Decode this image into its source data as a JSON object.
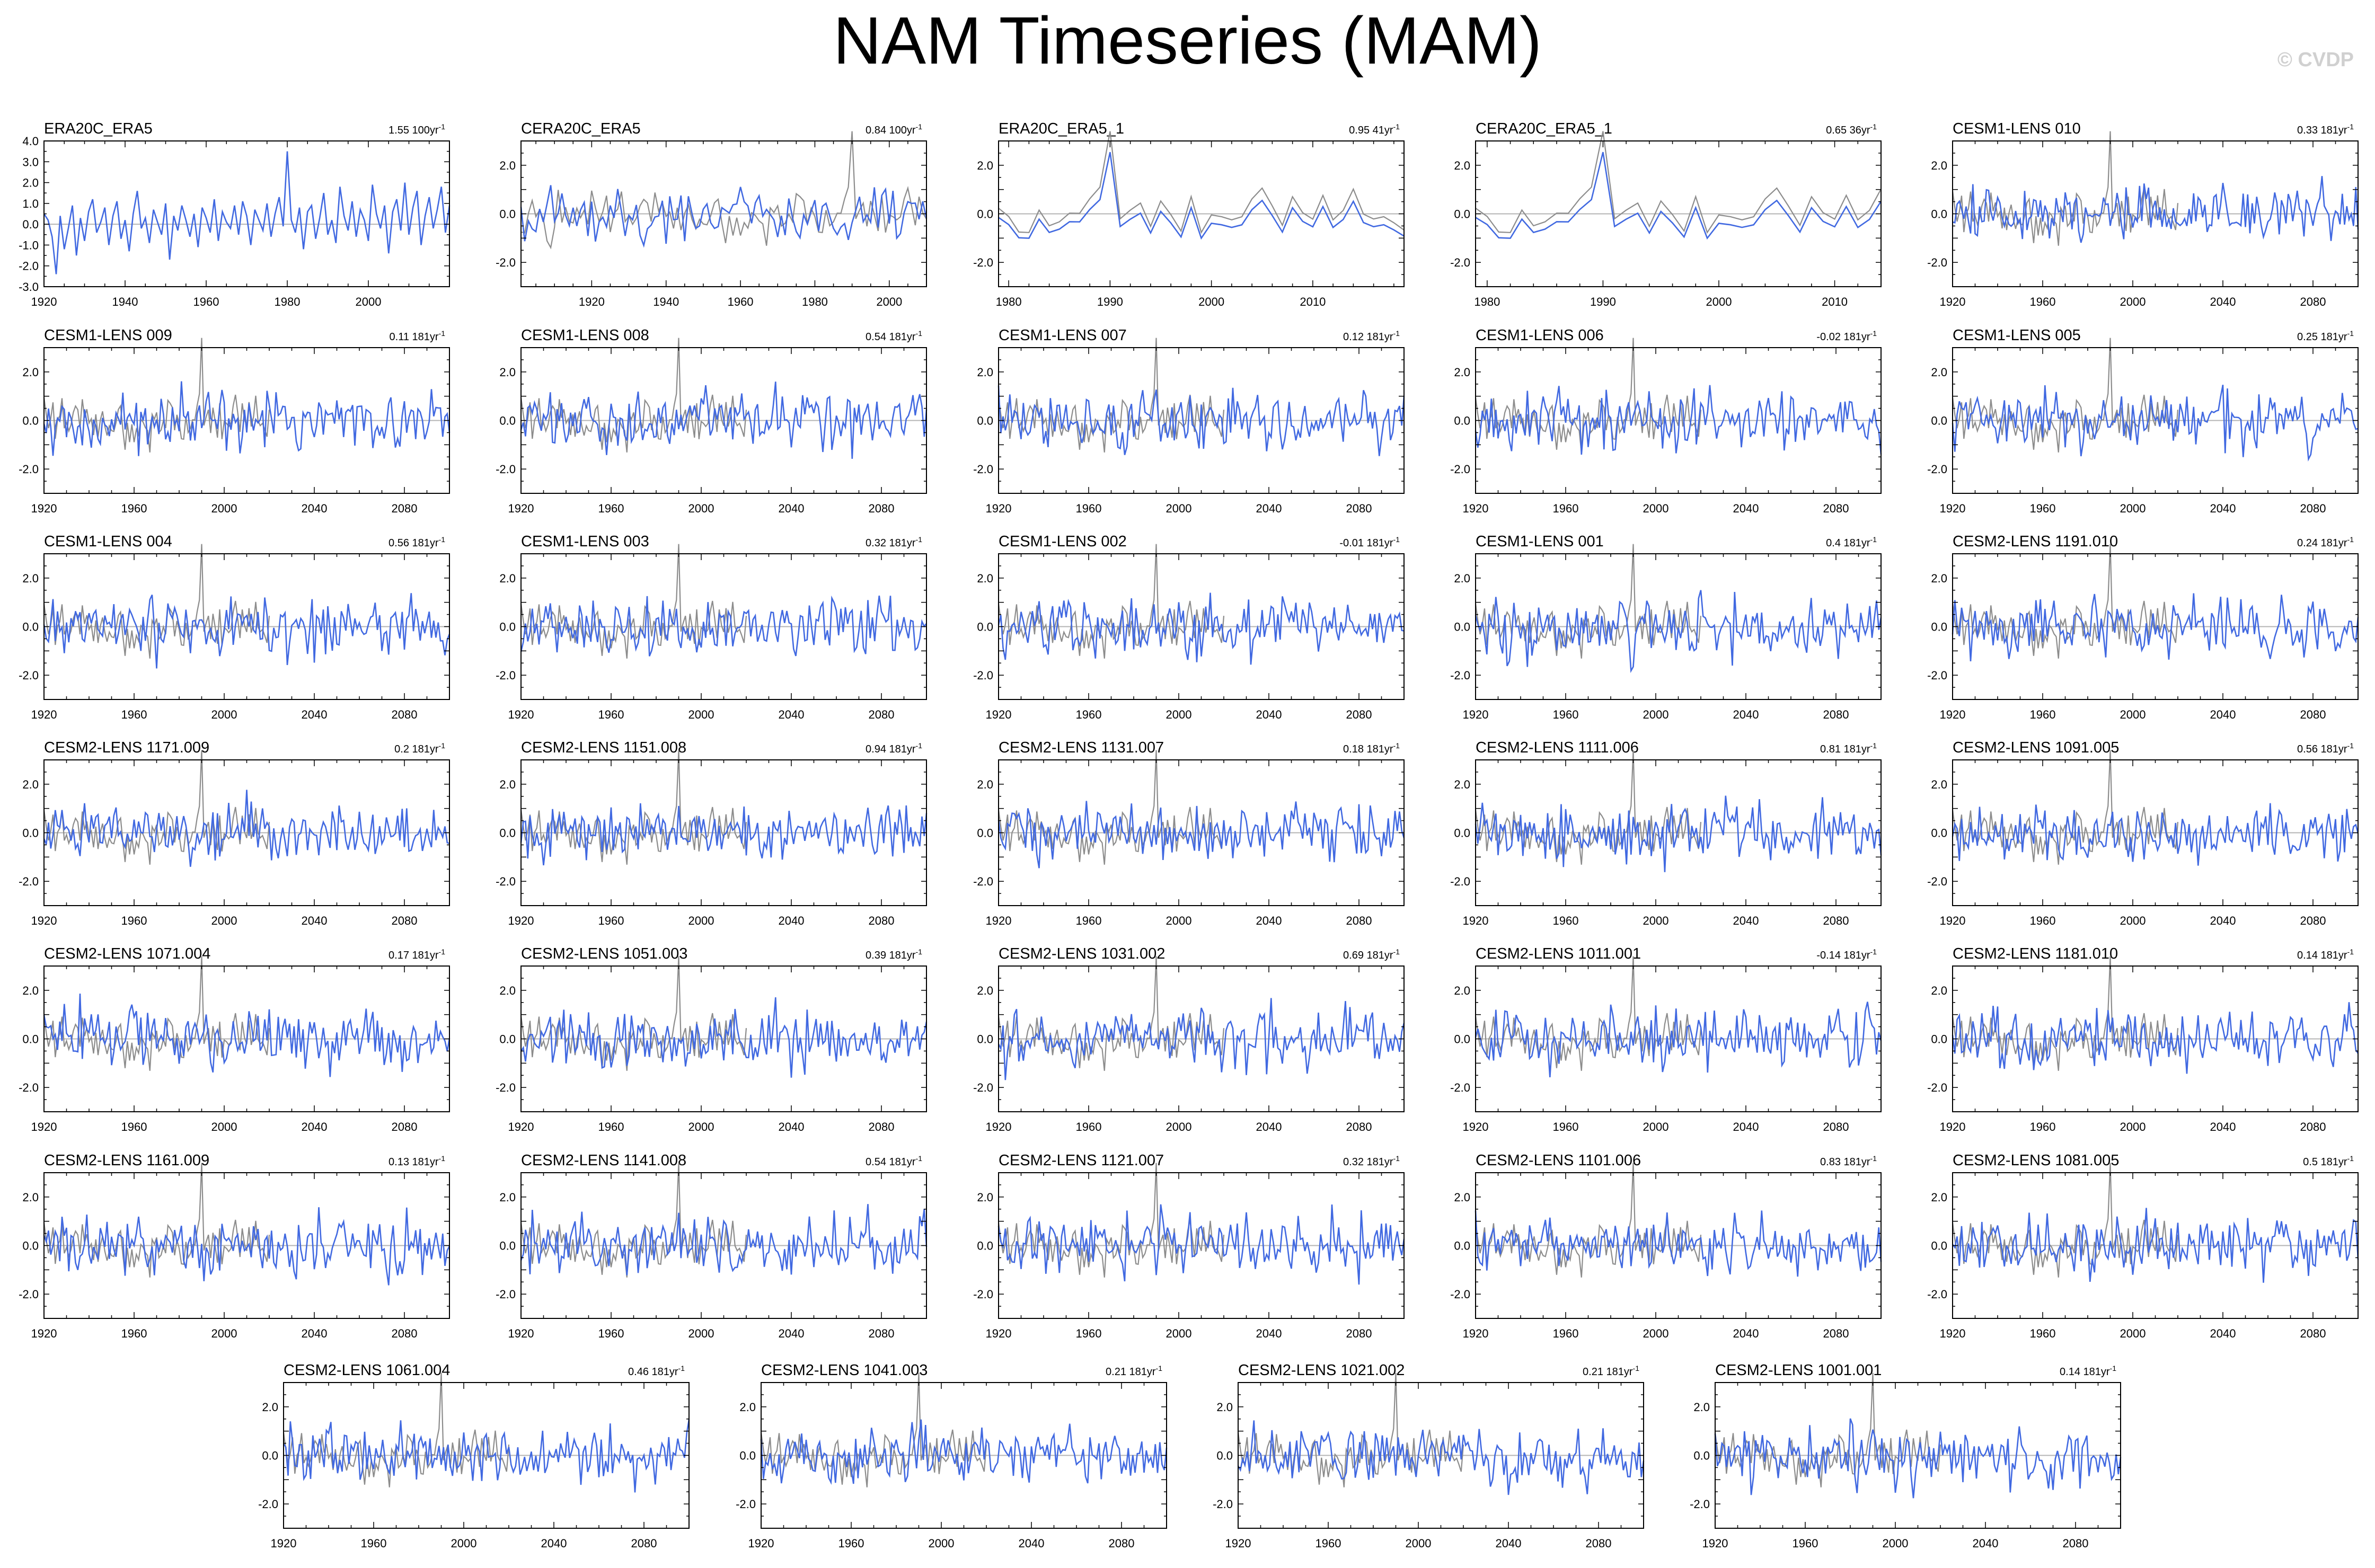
{
  "title": "NAM Timeseries (MAM)",
  "watermark": "© CVDP",
  "colors": {
    "model": "#4169e1",
    "observed": "#8c8c8c",
    "zero_line": "#b4b4b4"
  },
  "chart_data": [
    {
      "type": "line",
      "title": "ERA20C_ERA5",
      "trend": "1.55 100yr",
      "trend_exp": "-1",
      "xlim": [
        1920,
        2020
      ],
      "ylim": [
        -3.0,
        4.0
      ],
      "xticks": [
        1920,
        1940,
        1960,
        1980,
        2000
      ],
      "yticks": [
        "4.0",
        "3.0",
        "2.0",
        "1.0",
        "0.0",
        "-1.0",
        "-2.0",
        "-3.0"
      ],
      "ytick_values": [
        4,
        3,
        2,
        1,
        0,
        -1,
        -2,
        -3
      ],
      "series": [
        {
          "values_from": 1920,
          "values": [
            0.5,
            0.2,
            -0.6,
            -2.4,
            0.4,
            -1.2,
            -0.2,
            0.9,
            -1.5,
            0.3,
            -0.8,
            0.6,
            1.2,
            -0.4,
            0.1,
            0.8,
            -1.0,
            0.4,
            1.1,
            -0.7,
            0.2,
            -1.3,
            0.5,
            1.6,
            -0.2,
            0.3,
            -0.9,
            0.7,
            0.1,
            -0.5,
            1.0,
            -1.7,
            0.4,
            -0.3,
            0.9,
            0.2,
            -0.6,
            0.5,
            -1.1,
            0.8,
            0.3,
            -0.4,
            1.2,
            -0.8,
            0.6,
            0.1,
            -0.2,
            0.9,
            -0.5,
            1.1,
            0.4,
            -1.0,
            0.7,
            0.2,
            -0.3,
            1.0,
            -0.6,
            0.5,
            1.3,
            -0.1,
            3.5,
            0.2,
            -0.4,
            0.8,
            -1.2,
            0.6,
            0.9,
            -0.7,
            0.3,
            1.5,
            -0.5,
            0.2,
            -0.9,
            1.8,
            0.4,
            -0.3,
            1.1,
            -0.6,
            0.7,
            0.2,
            -0.8,
            1.9,
            0.5,
            -0.2,
            0.9,
            -1.4,
            0.6,
            1.2,
            -0.3,
            2.0,
            -0.5,
            0.8,
            1.6,
            -1.0,
            0.4,
            1.3,
            -0.2,
            0.7,
            1.8,
            -0.4,
            0.9
          ]
        }
      ]
    },
    {
      "type": "line",
      "title": "CERA20C_ERA5",
      "trend": "0.84 100yr",
      "trend_exp": "-1",
      "xlim": [
        1901,
        2010
      ],
      "ylim": [
        -3.0,
        3.0
      ],
      "xticks": [
        1920,
        1940,
        1960,
        1980,
        2000
      ],
      "yticks": [
        "2.0",
        "0.0",
        "-2.0"
      ],
      "ytick_values": [
        2,
        0,
        -2
      ]
    },
    {
      "type": "line",
      "title": "ERA20C_ERA5_1",
      "trend": "0.95 41yr",
      "trend_exp": "-1",
      "xlim": [
        1979,
        2019
      ],
      "ylim": [
        -3.0,
        3.0
      ],
      "xticks": [
        1980,
        1990,
        2000,
        2010
      ],
      "yticks": [
        "2.0",
        "0.0",
        "-2.0"
      ],
      "ytick_values": [
        2,
        0,
        -2
      ]
    },
    {
      "type": "line",
      "title": "CERA20C_ERA5_1",
      "trend": "0.65 36yr",
      "trend_exp": "-1",
      "xlim": [
        1979,
        2014
      ],
      "ylim": [
        -3.0,
        3.0
      ],
      "xticks": [
        1980,
        1990,
        2000,
        2010
      ],
      "yticks": [
        "2.0",
        "0.0",
        "-2.0"
      ],
      "ytick_values": [
        2,
        0,
        -2
      ]
    },
    {
      "type": "line",
      "title": "CESM1-LENS 010",
      "trend": "0.33 181yr",
      "trend_exp": "-1",
      "xlim": [
        1920,
        2100
      ],
      "ylim": [
        -3.0,
        3.0
      ],
      "xticks": [
        1920,
        1960,
        2000,
        2040,
        2080
      ],
      "yticks": [
        "2.0",
        "0.0",
        "-2.0"
      ],
      "ytick_values": [
        2,
        0,
        -2
      ]
    },
    {
      "type": "line",
      "title": "CESM1-LENS 009",
      "trend": "0.11 181yr",
      "trend_exp": "-1",
      "xlim": [
        1920,
        2100
      ],
      "ylim": [
        -3.0,
        3.0
      ],
      "xticks": [
        1920,
        1960,
        2000,
        2040,
        2080
      ],
      "yticks": [
        "2.0",
        "0.0",
        "-2.0"
      ],
      "ytick_values": [
        2,
        0,
        -2
      ]
    },
    {
      "type": "line",
      "title": "CESM1-LENS 008",
      "trend": "0.54 181yr",
      "trend_exp": "-1",
      "xlim": [
        1920,
        2100
      ],
      "ylim": [
        -3.0,
        3.0
      ],
      "xticks": [
        1920,
        1960,
        2000,
        2040,
        2080
      ],
      "yticks": [
        "2.0",
        "0.0",
        "-2.0"
      ],
      "ytick_values": [
        2,
        0,
        -2
      ]
    },
    {
      "type": "line",
      "title": "CESM1-LENS 007",
      "trend": "0.12 181yr",
      "trend_exp": "-1",
      "xlim": [
        1920,
        2100
      ],
      "ylim": [
        -3.0,
        3.0
      ],
      "xticks": [
        1920,
        1960,
        2000,
        2040,
        2080
      ],
      "yticks": [
        "2.0",
        "0.0",
        "-2.0"
      ],
      "ytick_values": [
        2,
        0,
        -2
      ]
    },
    {
      "type": "line",
      "title": "CESM1-LENS 006",
      "trend": "-0.02 181yr",
      "trend_exp": "-1",
      "xlim": [
        1920,
        2100
      ],
      "ylim": [
        -3.0,
        3.0
      ],
      "xticks": [
        1920,
        1960,
        2000,
        2040,
        2080
      ],
      "yticks": [
        "2.0",
        "0.0",
        "-2.0"
      ],
      "ytick_values": [
        2,
        0,
        -2
      ]
    },
    {
      "type": "line",
      "title": "CESM1-LENS 005",
      "trend": "0.25 181yr",
      "trend_exp": "-1",
      "xlim": [
        1920,
        2100
      ],
      "ylim": [
        -3.0,
        3.0
      ],
      "xticks": [
        1920,
        1960,
        2000,
        2040,
        2080
      ],
      "yticks": [
        "2.0",
        "0.0",
        "-2.0"
      ],
      "ytick_values": [
        2,
        0,
        -2
      ]
    },
    {
      "type": "line",
      "title": "CESM1-LENS 004",
      "trend": "0.56 181yr",
      "trend_exp": "-1",
      "xlim": [
        1920,
        2100
      ],
      "ylim": [
        -3.0,
        3.0
      ],
      "xticks": [
        1920,
        1960,
        2000,
        2040,
        2080
      ],
      "yticks": [
        "2.0",
        "0.0",
        "-2.0"
      ],
      "ytick_values": [
        2,
        0,
        -2
      ]
    },
    {
      "type": "line",
      "title": "CESM1-LENS 003",
      "trend": "0.32 181yr",
      "trend_exp": "-1",
      "xlim": [
        1920,
        2100
      ],
      "ylim": [
        -3.0,
        3.0
      ],
      "xticks": [
        1920,
        1960,
        2000,
        2040,
        2080
      ],
      "yticks": [
        "2.0",
        "0.0",
        "-2.0"
      ],
      "ytick_values": [
        2,
        0,
        -2
      ]
    },
    {
      "type": "line",
      "title": "CESM1-LENS 002",
      "trend": "-0.01 181yr",
      "trend_exp": "-1",
      "xlim": [
        1920,
        2100
      ],
      "ylim": [
        -3.0,
        3.0
      ],
      "xticks": [
        1920,
        1960,
        2000,
        2040,
        2080
      ],
      "yticks": [
        "2.0",
        "0.0",
        "-2.0"
      ],
      "ytick_values": [
        2,
        0,
        -2
      ]
    },
    {
      "type": "line",
      "title": "CESM1-LENS 001",
      "trend": "0.4 181yr",
      "trend_exp": "-1",
      "xlim": [
        1920,
        2100
      ],
      "ylim": [
        -3.0,
        3.0
      ],
      "xticks": [
        1920,
        1960,
        2000,
        2040,
        2080
      ],
      "yticks": [
        "2.0",
        "0.0",
        "-2.0"
      ],
      "ytick_values": [
        2,
        0,
        -2
      ]
    },
    {
      "type": "line",
      "title": "CESM2-LENS 1191.010",
      "trend": "0.24 181yr",
      "trend_exp": "-1",
      "xlim": [
        1920,
        2100
      ],
      "ylim": [
        -3.0,
        3.0
      ],
      "xticks": [
        1920,
        1960,
        2000,
        2040,
        2080
      ],
      "yticks": [
        "2.0",
        "0.0",
        "-2.0"
      ],
      "ytick_values": [
        2,
        0,
        -2
      ]
    },
    {
      "type": "line",
      "title": "CESM2-LENS 1171.009",
      "trend": "0.2 181yr",
      "trend_exp": "-1",
      "xlim": [
        1920,
        2100
      ],
      "ylim": [
        -3.0,
        3.0
      ],
      "xticks": [
        1920,
        1960,
        2000,
        2040,
        2080
      ],
      "yticks": [
        "2.0",
        "0.0",
        "-2.0"
      ],
      "ytick_values": [
        2,
        0,
        -2
      ]
    },
    {
      "type": "line",
      "title": "CESM2-LENS 1151.008",
      "trend": "0.94 181yr",
      "trend_exp": "-1",
      "xlim": [
        1920,
        2100
      ],
      "ylim": [
        -3.0,
        3.0
      ],
      "xticks": [
        1920,
        1960,
        2000,
        2040,
        2080
      ],
      "yticks": [
        "2.0",
        "0.0",
        "-2.0"
      ],
      "ytick_values": [
        2,
        0,
        -2
      ]
    },
    {
      "type": "line",
      "title": "CESM2-LENS 1131.007",
      "trend": "0.18 181yr",
      "trend_exp": "-1",
      "xlim": [
        1920,
        2100
      ],
      "ylim": [
        -3.0,
        3.0
      ],
      "xticks": [
        1920,
        1960,
        2000,
        2040,
        2080
      ],
      "yticks": [
        "2.0",
        "0.0",
        "-2.0"
      ],
      "ytick_values": [
        2,
        0,
        -2
      ]
    },
    {
      "type": "line",
      "title": "CESM2-LENS 1111.006",
      "trend": "0.81 181yr",
      "trend_exp": "-1",
      "xlim": [
        1920,
        2100
      ],
      "ylim": [
        -3.0,
        3.0
      ],
      "xticks": [
        1920,
        1960,
        2000,
        2040,
        2080
      ],
      "yticks": [
        "2.0",
        "0.0",
        "-2.0"
      ],
      "ytick_values": [
        2,
        0,
        -2
      ]
    },
    {
      "type": "line",
      "title": "CESM2-LENS 1091.005",
      "trend": "0.56 181yr",
      "trend_exp": "-1",
      "xlim": [
        1920,
        2100
      ],
      "ylim": [
        -3.0,
        3.0
      ],
      "xticks": [
        1920,
        1960,
        2000,
        2040,
        2080
      ],
      "yticks": [
        "2.0",
        "0.0",
        "-2.0"
      ],
      "ytick_values": [
        2,
        0,
        -2
      ]
    },
    {
      "type": "line",
      "title": "CESM2-LENS 1071.004",
      "trend": "0.17 181yr",
      "trend_exp": "-1",
      "xlim": [
        1920,
        2100
      ],
      "ylim": [
        -3.0,
        3.0
      ],
      "xticks": [
        1920,
        1960,
        2000,
        2040,
        2080
      ],
      "yticks": [
        "2.0",
        "0.0",
        "-2.0"
      ],
      "ytick_values": [
        2,
        0,
        -2
      ]
    },
    {
      "type": "line",
      "title": "CESM2-LENS 1051.003",
      "trend": "0.39 181yr",
      "trend_exp": "-1",
      "xlim": [
        1920,
        2100
      ],
      "ylim": [
        -3.0,
        3.0
      ],
      "xticks": [
        1920,
        1960,
        2000,
        2040,
        2080
      ],
      "yticks": [
        "2.0",
        "0.0",
        "-2.0"
      ],
      "ytick_values": [
        2,
        0,
        -2
      ]
    },
    {
      "type": "line",
      "title": "CESM2-LENS 1031.002",
      "trend": "0.69 181yr",
      "trend_exp": "-1",
      "xlim": [
        1920,
        2100
      ],
      "ylim": [
        -3.0,
        3.0
      ],
      "xticks": [
        1920,
        1960,
        2000,
        2040,
        2080
      ],
      "yticks": [
        "2.0",
        "0.0",
        "-2.0"
      ],
      "ytick_values": [
        2,
        0,
        -2
      ]
    },
    {
      "type": "line",
      "title": "CESM2-LENS 1011.001",
      "trend": "-0.14 181yr",
      "trend_exp": "-1",
      "xlim": [
        1920,
        2100
      ],
      "ylim": [
        -3.0,
        3.0
      ],
      "xticks": [
        1920,
        1960,
        2000,
        2040,
        2080
      ],
      "yticks": [
        "2.0",
        "0.0",
        "-2.0"
      ],
      "ytick_values": [
        2,
        0,
        -2
      ]
    },
    {
      "type": "line",
      "title": "CESM2-LENS 1181.010",
      "trend": "0.14 181yr",
      "trend_exp": "-1",
      "xlim": [
        1920,
        2100
      ],
      "ylim": [
        -3.0,
        3.0
      ],
      "xticks": [
        1920,
        1960,
        2000,
        2040,
        2080
      ],
      "yticks": [
        "2.0",
        "0.0",
        "-2.0"
      ],
      "ytick_values": [
        2,
        0,
        -2
      ]
    },
    {
      "type": "line",
      "title": "CESM2-LENS 1161.009",
      "trend": "0.13 181yr",
      "trend_exp": "-1",
      "xlim": [
        1920,
        2100
      ],
      "ylim": [
        -3.0,
        3.0
      ],
      "xticks": [
        1920,
        1960,
        2000,
        2040,
        2080
      ],
      "yticks": [
        "2.0",
        "0.0",
        "-2.0"
      ],
      "ytick_values": [
        2,
        0,
        -2
      ]
    },
    {
      "type": "line",
      "title": "CESM2-LENS 1141.008",
      "trend": "0.54 181yr",
      "trend_exp": "-1",
      "xlim": [
        1920,
        2100
      ],
      "ylim": [
        -3.0,
        3.0
      ],
      "xticks": [
        1920,
        1960,
        2000,
        2040,
        2080
      ],
      "yticks": [
        "2.0",
        "0.0",
        "-2.0"
      ],
      "ytick_values": [
        2,
        0,
        -2
      ]
    },
    {
      "type": "line",
      "title": "CESM2-LENS 1121.007",
      "trend": "0.32 181yr",
      "trend_exp": "-1",
      "xlim": [
        1920,
        2100
      ],
      "ylim": [
        -3.0,
        3.0
      ],
      "xticks": [
        1920,
        1960,
        2000,
        2040,
        2080
      ],
      "yticks": [
        "2.0",
        "0.0",
        "-2.0"
      ],
      "ytick_values": [
        2,
        0,
        -2
      ]
    },
    {
      "type": "line",
      "title": "CESM2-LENS 1101.006",
      "trend": "0.83 181yr",
      "trend_exp": "-1",
      "xlim": [
        1920,
        2100
      ],
      "ylim": [
        -3.0,
        3.0
      ],
      "xticks": [
        1920,
        1960,
        2000,
        2040,
        2080
      ],
      "yticks": [
        "2.0",
        "0.0",
        "-2.0"
      ],
      "ytick_values": [
        2,
        0,
        -2
      ]
    },
    {
      "type": "line",
      "title": "CESM2-LENS 1081.005",
      "trend": "0.5 181yr",
      "trend_exp": "-1",
      "xlim": [
        1920,
        2100
      ],
      "ylim": [
        -3.0,
        3.0
      ],
      "xticks": [
        1920,
        1960,
        2000,
        2040,
        2080
      ],
      "yticks": [
        "2.0",
        "0.0",
        "-2.0"
      ],
      "ytick_values": [
        2,
        0,
        -2
      ]
    },
    {
      "type": "line",
      "title": "CESM2-LENS 1061.004",
      "trend": "0.46 181yr",
      "trend_exp": "-1",
      "xlim": [
        1920,
        2100
      ],
      "ylim": [
        -3.0,
        3.0
      ],
      "xticks": [
        1920,
        1960,
        2000,
        2040,
        2080
      ],
      "yticks": [
        "2.0",
        "0.0",
        "-2.0"
      ],
      "ytick_values": [
        2,
        0,
        -2
      ]
    },
    {
      "type": "line",
      "title": "CESM2-LENS 1041.003",
      "trend": "0.21 181yr",
      "trend_exp": "-1",
      "xlim": [
        1920,
        2100
      ],
      "ylim": [
        -3.0,
        3.0
      ],
      "xticks": [
        1920,
        1960,
        2000,
        2040,
        2080
      ],
      "yticks": [
        "2.0",
        "0.0",
        "-2.0"
      ],
      "ytick_values": [
        2,
        0,
        -2
      ]
    },
    {
      "type": "line",
      "title": "CESM2-LENS 1021.002",
      "trend": "0.21 181yr",
      "trend_exp": "-1",
      "xlim": [
        1920,
        2100
      ],
      "ylim": [
        -3.0,
        3.0
      ],
      "xticks": [
        1920,
        1960,
        2000,
        2040,
        2080
      ],
      "yticks": [
        "2.0",
        "0.0",
        "-2.0"
      ],
      "ytick_values": [
        2,
        0,
        -2
      ]
    },
    {
      "type": "line",
      "title": "CESM2-LENS 1001.001",
      "trend": "0.14 181yr",
      "trend_exp": "-1",
      "xlim": [
        1920,
        2100
      ],
      "ylim": [
        -3.0,
        3.0
      ],
      "xticks": [
        1920,
        1960,
        2000,
        2040,
        2080
      ],
      "yticks": [
        "2.0",
        "0.0",
        "-2.0"
      ],
      "ytick_values": [
        2,
        0,
        -2
      ]
    }
  ]
}
